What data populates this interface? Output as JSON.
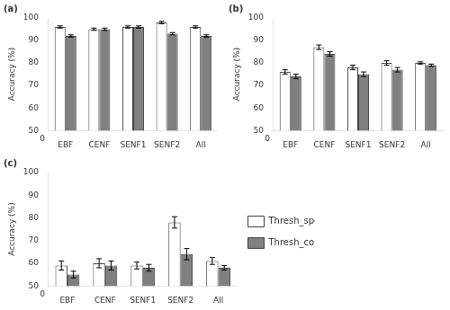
{
  "chart_data": [
    {
      "type": "bar",
      "title": "(a)",
      "ylabel": "Accuracy (%)",
      "categories": [
        "EBF",
        "CENF",
        "SENF1",
        "SENF2",
        "All"
      ],
      "series": [
        {
          "name": "Thresh_specific",
          "color": "#ffffff",
          "values": [
            96,
            95,
            96,
            98,
            96
          ],
          "errors": [
            0.5,
            0.5,
            0.5,
            0.5,
            0.5
          ]
        },
        {
          "name": "Thresh_common",
          "color": "#808080",
          "values": [
            92,
            95,
            96,
            93,
            92
          ],
          "errors": [
            0.5,
            0.5,
            0.5,
            0.5,
            0.5
          ]
        }
      ],
      "ylim": [
        50,
        100
      ],
      "yticks": [
        50,
        60,
        70,
        80,
        90,
        100
      ],
      "grid": false,
      "annotations": [
        {
          "text": "0"
        }
      ]
    },
    {
      "type": "bar",
      "title": "(b)",
      "ylabel": "Accuracy (%)",
      "categories": [
        "EBF",
        "CENF",
        "SENF1",
        "SENF2",
        "All"
      ],
      "series": [
        {
          "name": "Thresh_specific",
          "color": "#ffffff",
          "values": [
            76,
            87,
            78,
            80,
            80
          ],
          "errors": [
            1.0,
            1.0,
            1.0,
            1.0,
            0.5
          ]
        },
        {
          "name": "Thresh_common",
          "color": "#808080",
          "values": [
            74,
            84,
            75,
            77,
            79
          ],
          "errors": [
            1.0,
            1.0,
            1.0,
            1.0,
            0.5
          ]
        }
      ],
      "ylim": [
        50,
        100
      ],
      "yticks": [
        50,
        60,
        70,
        80,
        90,
        100
      ],
      "grid": false,
      "annotations": [
        {
          "text": "0"
        }
      ]
    },
    {
      "type": "bar",
      "title": "(c)",
      "ylabel": "Accuracy (%)",
      "categories": [
        "EBF",
        "CENF",
        "SENF1",
        "SENF2",
        "All"
      ],
      "series": [
        {
          "name": "Thresh_specific",
          "color": "#ffffff",
          "values": [
            59,
            60,
            59,
            78,
            61
          ],
          "errors": [
            2.0,
            2.0,
            1.5,
            2.5,
            1.5
          ]
        },
        {
          "name": "Thresh_common",
          "color": "#808080",
          "values": [
            55,
            59,
            58,
            64,
            58
          ],
          "errors": [
            1.5,
            2.0,
            1.5,
            2.5,
            1.0
          ]
        }
      ],
      "ylim": [
        50,
        100
      ],
      "yticks": [
        50,
        60,
        70,
        80,
        90,
        100
      ],
      "grid": false,
      "annotations": [
        {
          "text": "0"
        }
      ],
      "legend": "right"
    }
  ]
}
